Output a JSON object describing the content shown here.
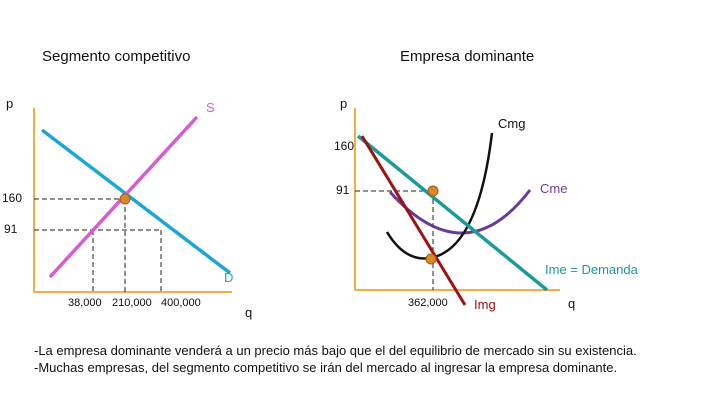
{
  "left_panel": {
    "title": "Segmento competitivo",
    "axis_p": "p",
    "axis_q": "q",
    "curve_s": "S",
    "curve_d": "D",
    "price_160": "160",
    "price_91": "91",
    "q_values": [
      "38,000",
      "210,000",
      "400,000"
    ]
  },
  "right_panel": {
    "title": "Empresa dominante",
    "axis_p": "p",
    "axis_q": "q",
    "price_160": "160",
    "price_91": "91",
    "curve_cmg": "Cmg",
    "curve_cme": "Cme",
    "curve_ime": "Ime = Demanda",
    "curve_img": "Img",
    "q_value": "362,000"
  },
  "colors": {
    "axis": "#f0b040",
    "demand": "#1aa6d6",
    "supply": "#d65ccf",
    "dominant_demand": "#1a9a9a",
    "img": "#a01010",
    "cme": "#6a3a9a",
    "cmg": "#111111",
    "dot": "#d88a2a"
  },
  "notes": [
    "-La empresa dominante venderá a un precio más bajo que el del equilibrio de mercado sin su existencia.",
    "-Muchas empresas, del segmento competitivo se irán del mercado al ingresar la empresa dominante."
  ]
}
